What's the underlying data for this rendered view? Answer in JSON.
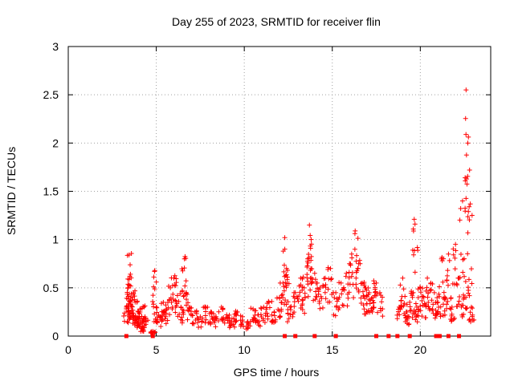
{
  "chart_data": {
    "type": "scatter",
    "title": "Day 255 of 2023, SRMTID for receiver flin",
    "xlabel": "GPS time / hours",
    "ylabel": "SRMTID / TECUs",
    "xlim": [
      0,
      24
    ],
    "ylim": [
      0,
      3
    ],
    "xticks": [
      0,
      5,
      10,
      15,
      20
    ],
    "xtick_labels": [
      "0",
      "5",
      "10",
      "15",
      "20"
    ],
    "yticks": [
      0,
      0.5,
      1,
      1.5,
      2,
      2.5,
      3
    ],
    "ytick_labels": [
      "0",
      "0.5",
      "1",
      "1.5",
      "2",
      "2.5",
      "3"
    ],
    "grid": true,
    "marker": "plus",
    "series": [
      {
        "name": "SRMTID",
        "color": "#ff0000",
        "x": [
          3.3,
          3.4,
          3.45,
          3.5,
          3.55,
          3.6,
          3.7,
          3.8,
          3.9,
          4.0,
          4.1,
          4.2,
          4.3,
          4.4,
          4.8,
          4.9,
          5.0,
          5.2,
          5.4,
          5.6,
          5.8,
          6.0,
          6.2,
          6.4,
          6.6,
          6.7,
          6.9,
          7.2,
          7.5,
          7.8,
          8.1,
          8.4,
          8.7,
          9.0,
          9.3,
          9.6,
          9.9,
          10.2,
          10.5,
          10.8,
          11.1,
          11.4,
          11.7,
          12.0,
          12.2,
          12.3,
          12.4,
          12.6,
          12.9,
          13.2,
          13.4,
          13.6,
          13.7,
          13.8,
          14.0,
          14.3,
          14.6,
          14.9,
          15.2,
          15.5,
          15.8,
          16.1,
          16.3,
          16.5,
          16.7,
          16.9,
          17.1,
          17.3,
          17.5,
          17.7,
          18.8,
          19.0,
          19.2,
          19.4,
          19.6,
          19.7,
          19.8,
          20.0,
          20.2,
          20.4,
          20.6,
          20.8,
          21.0,
          21.2,
          21.4,
          21.6,
          21.8,
          22.0,
          22.2,
          22.4,
          22.5,
          22.6,
          22.7,
          22.8,
          22.9
        ],
        "y": [
          0.3,
          0.5,
          0.84,
          0.62,
          0.4,
          0.25,
          0.45,
          0.2,
          0.35,
          0.15,
          0.28,
          0.1,
          0.3,
          0.18,
          0.05,
          0.67,
          0.3,
          0.2,
          0.35,
          0.28,
          0.5,
          0.6,
          0.42,
          0.3,
          0.8,
          0.45,
          0.3,
          0.25,
          0.2,
          0.3,
          0.25,
          0.2,
          0.3,
          0.22,
          0.18,
          0.25,
          0.2,
          0.15,
          0.28,
          0.22,
          0.3,
          0.35,
          0.25,
          0.4,
          0.55,
          1.02,
          0.7,
          0.3,
          0.45,
          0.6,
          0.5,
          0.8,
          1.15,
          1.0,
          0.65,
          0.5,
          0.6,
          0.7,
          0.45,
          0.55,
          0.65,
          0.85,
          1.09,
          0.75,
          0.55,
          0.5,
          0.45,
          0.4,
          0.55,
          0.45,
          0.3,
          0.6,
          0.25,
          0.35,
          0.45,
          1.16,
          0.3,
          0.5,
          0.4,
          0.6,
          0.55,
          0.45,
          0.35,
          0.8,
          0.4,
          0.85,
          0.3,
          0.95,
          0.6,
          1.4,
          0.4,
          2.55,
          2.0,
          1.72,
          0.3
        ],
        "zero_markers_x": [
          3.3,
          4.8,
          12.3,
          12.9,
          14.0,
          15.2,
          17.5,
          18.2,
          18.7,
          19.4,
          20.9,
          21.1,
          21.6,
          22.2
        ]
      }
    ]
  }
}
